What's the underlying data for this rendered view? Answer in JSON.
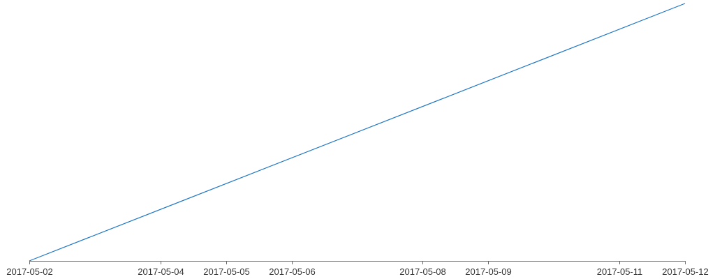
{
  "chart_data": {
    "type": "line",
    "title": "",
    "xlabel": "",
    "ylabel": "",
    "x_axis_type": "time",
    "x_tick_labels": [
      "2017-05-02",
      "2017-05-04",
      "2017-05-05",
      "2017-05-06",
      "2017-05-08",
      "2017-05-09",
      "2017-05-11",
      "2017-05-12"
    ],
    "y_axis_visible": false,
    "grid": false,
    "legend": "none",
    "series": [
      {
        "color": "#1f77c4",
        "points": [
          {
            "x": "2017-05-02",
            "y": 0
          },
          {
            "x": "2017-05-12",
            "y": 1
          }
        ]
      }
    ],
    "ylim": [
      0,
      1
    ]
  }
}
